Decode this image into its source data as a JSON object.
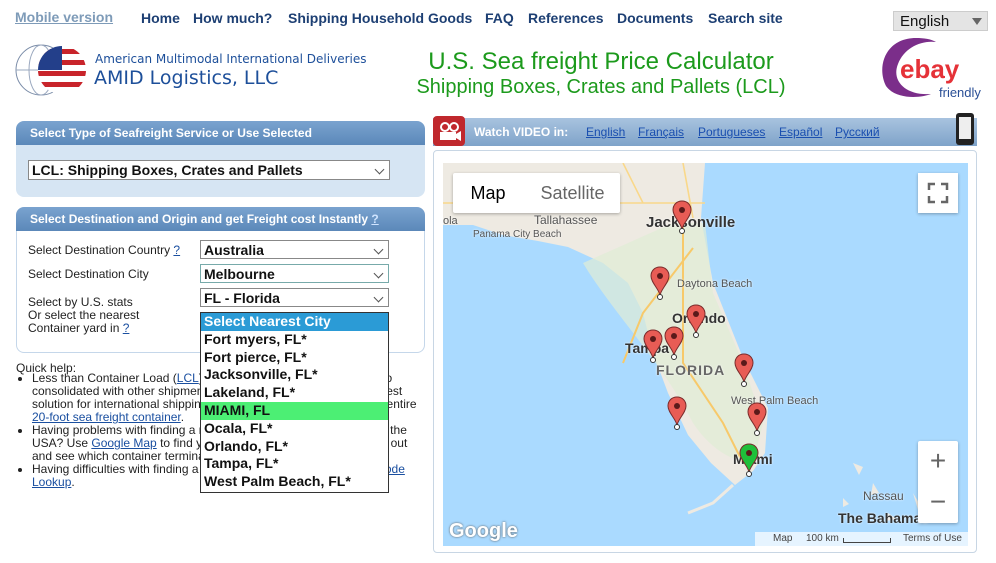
{
  "nav": {
    "mobile_version": "Mobile version",
    "links": [
      "Home",
      "How much?",
      "Shipping Household Goods",
      "FAQ",
      "References",
      "Documents",
      "Search site"
    ],
    "language": "English"
  },
  "header": {
    "tagline": "American Multimodal International Deliveries",
    "company": "AMID Logistics, LLC",
    "title": "U.S. Sea freight Price Calculator",
    "subtitle": "Shipping Boxes, Crates and Pallets (LCL)",
    "ebay_logo": "ebay",
    "ebay_badge": "friendly"
  },
  "service_panel": {
    "heading": "Select Type of Seafreight Service or Use Selected",
    "selected": "LCL: Shipping Boxes, Crates and Pallets"
  },
  "destination_panel": {
    "heading": "Select Destination and Origin and get Freight cost Instantly",
    "help": "?",
    "country_label": "Select Destination Country",
    "country_help": "?",
    "country": "Australia",
    "city_label": "Select Destination City",
    "city": "Melbourne",
    "state_label": "Select by U.S. stats",
    "state": "FL - Florida",
    "yard_label": "Or select the nearest Container yard in",
    "yard_help": "?",
    "options": [
      "Select Nearest City",
      "Fort myers, FL*",
      "Fort pierce, FL*",
      "Jacksonville, FL*",
      "Lakeland, FL*",
      "MIAMI, FL",
      "Ocala, FL*",
      "Orlando, FL*",
      "Tampa, FL*",
      "West Palm Beach, FL*"
    ]
  },
  "quick_help": {
    "heading": "Quick help:",
    "items": [
      [
        "Less than Container Load (",
        "LCL",
        ") is boxed, crated or palletized cargo consolidated with other shipments in a single container - the cheapest solution for international shipping of small loads that don't need an entire ",
        "20-foot sea freight container",
        "."
      ],
      [
        "Having problems with finding a nearest container freight terminal in the USA? Use ",
        "Google Map",
        " to find your U.S. ZIP (postal code). Zoom it out and see which container terminal is the nearest to you."
      ],
      [
        "Having difficulties with finding a U.S. ZIP (postal) code? Use ",
        "ZIP Code Lookup",
        "."
      ]
    ]
  },
  "video": {
    "label": "Watch VIDEO in:",
    "languages": [
      "English",
      "Français",
      "Portugueses",
      "Español",
      "Русский"
    ]
  },
  "map": {
    "map_button": "Map",
    "satellite_button": "Satellite",
    "labels": {
      "pensacola": "ola",
      "tallahassee": "Tallahassee",
      "panama": "Panama City Beach",
      "jacksonville": "Jacksonville",
      "daytona": "Daytona Beach",
      "orlando": "Orlando",
      "tampa": "Tampa",
      "florida": "FLORIDA",
      "west_palm": "West Palm Beach",
      "miami": "Miami",
      "nassau": "Nassau",
      "bahamas": "The Bahamas"
    },
    "zoom_in": "+",
    "zoom_out": "−",
    "google": "Google",
    "footer_map": "Map",
    "scale": "100 km",
    "terms": "Terms of Use"
  }
}
